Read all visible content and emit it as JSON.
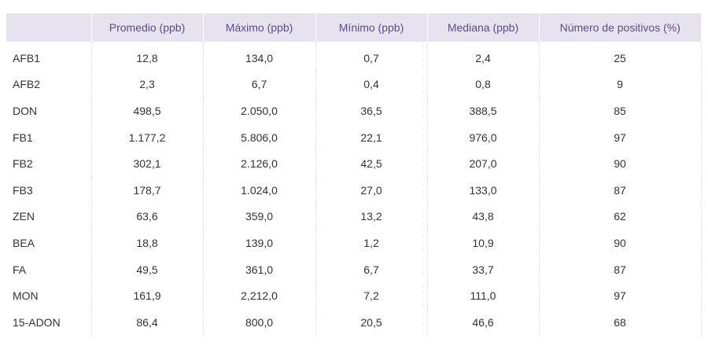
{
  "table": {
    "headers": [
      "",
      "Promedio (ppb)",
      "Máximo (ppb)",
      "Mínimo (ppb)",
      "Mediana (ppb)",
      "Número de positivos (%)"
    ],
    "rows": [
      [
        "AFB1",
        "12,8",
        "134,0",
        "0,7",
        "2,4",
        "25"
      ],
      [
        "AFB2",
        "2,3",
        "6,7",
        "0,4",
        "0,8",
        "9"
      ],
      [
        "DON",
        "498,5",
        "2.050,0",
        "36,5",
        "388,5",
        "85"
      ],
      [
        "FB1",
        "1.177,2",
        "5.806,0",
        "22,1",
        "976,0",
        "97"
      ],
      [
        "FB2",
        "302,1",
        "2.126,0",
        "42,5",
        "207,0",
        "90"
      ],
      [
        "FB3",
        "178,7",
        "1.024,0",
        "27,0",
        "133,0",
        "87"
      ],
      [
        "ZEN",
        "63,6",
        "359,0",
        "13,2",
        "43,8",
        "62"
      ],
      [
        "BEA",
        "18,8",
        "139,0",
        "1,2",
        "10,9",
        "90"
      ],
      [
        "FA",
        "49,5",
        "361,0",
        "6,7",
        "33,7",
        "87"
      ],
      [
        "MON",
        "161,9",
        "2,212,0",
        "7,2",
        "111,0",
        "97"
      ],
      [
        "15-ADON",
        "86,4",
        "800,0",
        "20,5",
        "46,6",
        "68"
      ]
    ]
  }
}
